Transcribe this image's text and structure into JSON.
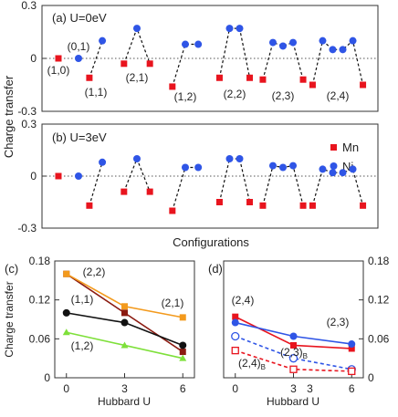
{
  "colors": {
    "mn": "#e8141e",
    "ni": "#2f55e6",
    "dash": "#111111",
    "frame": "#333333",
    "c_22": "#8b1a10",
    "c_21": "#f39a1d",
    "c_11": "#111111",
    "c_12": "#7ee03a",
    "d_24": "#e8141e",
    "d_23": "#2f55e6"
  },
  "chart_data": [
    {
      "id": "a",
      "type": "scatter",
      "panel_label": "(a) U=0eV",
      "ylabel": "Charge transfer",
      "ylim": [
        -0.3,
        0.3
      ],
      "yticks": [
        -0.3,
        0,
        0.3
      ],
      "ytick_labels": [
        "-0.3",
        "0",
        "0.3"
      ],
      "zero_line": true,
      "groups": [
        {
          "label": "(1,0)",
          "points": [
            {
              "s": "Mn",
              "y": 0.0
            }
          ]
        },
        {
          "label": "(0,1)",
          "points": [
            {
              "s": "Ni",
              "y": 0.0
            }
          ]
        },
        {
          "label": "(1,1)",
          "points": [
            {
              "s": "Mn",
              "y": -0.11
            },
            {
              "s": "Ni",
              "y": 0.1
            }
          ]
        },
        {
          "label": "(2,1)",
          "points": [
            {
              "s": "Mn",
              "y": -0.03
            },
            {
              "s": "Ni",
              "y": 0.17
            },
            {
              "s": "Mn",
              "y": -0.03
            }
          ]
        },
        {
          "label": "(1,2)",
          "points": [
            {
              "s": "Mn",
              "y": -0.16
            },
            {
              "s": "Ni",
              "y": 0.08
            },
            {
              "s": "Ni",
              "y": 0.08
            }
          ]
        },
        {
          "label": "(2,2)",
          "points": [
            {
              "s": "Mn",
              "y": -0.11
            },
            {
              "s": "Ni",
              "y": 0.17
            },
            {
              "s": "Ni",
              "y": 0.17
            },
            {
              "s": "Mn",
              "y": -0.11
            }
          ]
        },
        {
          "label": "(2,3)",
          "points": [
            {
              "s": "Mn",
              "y": -0.12
            },
            {
              "s": "Ni",
              "y": 0.09
            },
            {
              "s": "Ni",
              "y": 0.07
            },
            {
              "s": "Ni",
              "y": 0.09
            },
            {
              "s": "Mn",
              "y": -0.12
            }
          ]
        },
        {
          "label": "(2,4)",
          "points": [
            {
              "s": "Mn",
              "y": -0.15
            },
            {
              "s": "Ni",
              "y": 0.1
            },
            {
              "s": "Ni",
              "y": 0.05
            },
            {
              "s": "Ni",
              "y": 0.05
            },
            {
              "s": "Ni",
              "y": 0.1
            },
            {
              "s": "Mn",
              "y": -0.15
            }
          ]
        }
      ]
    },
    {
      "id": "b",
      "type": "scatter",
      "panel_label": "(b) U=3eV",
      "xlabel": "Configurations",
      "ylim": [
        -0.3,
        0.3
      ],
      "yticks": [
        -0.3,
        0,
        0.3
      ],
      "ytick_labels": [
        "-0.3",
        "0",
        "0.3"
      ],
      "zero_line": true,
      "legend": [
        {
          "s": "Mn",
          "label": "Mn"
        },
        {
          "s": "Ni",
          "label": "Ni"
        }
      ],
      "legend_position": "top-right",
      "groups": [
        {
          "points": [
            {
              "s": "Mn",
              "y": 0.0
            }
          ]
        },
        {
          "points": [
            {
              "s": "Ni",
              "y": 0.0
            }
          ]
        },
        {
          "points": [
            {
              "s": "Mn",
              "y": -0.17
            },
            {
              "s": "Ni",
              "y": 0.08
            }
          ]
        },
        {
          "points": [
            {
              "s": "Mn",
              "y": -0.09
            },
            {
              "s": "Ni",
              "y": 0.1
            },
            {
              "s": "Mn",
              "y": -0.09
            }
          ]
        },
        {
          "points": [
            {
              "s": "Mn",
              "y": -0.2
            },
            {
              "s": "Ni",
              "y": 0.05
            },
            {
              "s": "Ni",
              "y": 0.05
            }
          ]
        },
        {
          "points": [
            {
              "s": "Mn",
              "y": -0.15
            },
            {
              "s": "Ni",
              "y": 0.1
            },
            {
              "s": "Ni",
              "y": 0.1
            },
            {
              "s": "Mn",
              "y": -0.15
            }
          ]
        },
        {
          "points": [
            {
              "s": "Mn",
              "y": -0.17
            },
            {
              "s": "Ni",
              "y": 0.06
            },
            {
              "s": "Ni",
              "y": 0.05
            },
            {
              "s": "Ni",
              "y": 0.06
            },
            {
              "s": "Mn",
              "y": -0.17
            }
          ]
        },
        {
          "points": [
            {
              "s": "Mn",
              "y": -0.17
            },
            {
              "s": "Ni",
              "y": 0.04
            },
            {
              "s": "Ni",
              "y": 0.02
            },
            {
              "s": "Ni",
              "y": 0.02
            },
            {
              "s": "Ni",
              "y": 0.04
            },
            {
              "s": "Mn",
              "y": -0.17
            }
          ]
        }
      ]
    },
    {
      "id": "c",
      "type": "line",
      "panel_label": "(c)",
      "xlabel": "Hubbard U",
      "ylabel": "Charge transfer",
      "x": [
        0,
        3,
        6
      ],
      "xtick_labels": [
        "0",
        "3",
        "6"
      ],
      "ylim": [
        0,
        0.18
      ],
      "yticks": [
        0,
        0.06,
        0.12,
        0.18
      ],
      "ytick_labels": [
        "0",
        "0.06",
        "0.12",
        "0.18"
      ],
      "series": [
        {
          "name": "(2,2)",
          "marker": "square",
          "color_key": "c_22",
          "values": [
            0.16,
            0.1,
            0.04
          ]
        },
        {
          "name": "(2,1)",
          "marker": "square",
          "color_key": "c_21",
          "values": [
            0.16,
            0.11,
            0.093
          ]
        },
        {
          "name": "(1,1)",
          "marker": "circle",
          "color_key": "c_11",
          "values": [
            0.1,
            0.085,
            0.05
          ]
        },
        {
          "name": "(1,2)",
          "marker": "triangle",
          "color_key": "c_12",
          "values": [
            0.07,
            0.05,
            0.03
          ]
        }
      ]
    },
    {
      "id": "d",
      "type": "line",
      "panel_label": "(d)",
      "xlabel": "Hubbard U",
      "x": [
        0,
        3,
        6
      ],
      "xtick_labels": [
        "0",
        "3",
        "6"
      ],
      "extra_tick_label": "3",
      "ylim": [
        0,
        0.18
      ],
      "yticks": [
        0,
        0.06,
        0.12,
        0.18
      ],
      "ytick_labels": [
        "0",
        "0.06",
        "0.12",
        "0.18"
      ],
      "series": [
        {
          "name": "(2,4)",
          "marker": "square",
          "color_key": "d_24",
          "filled": true,
          "dashed": false,
          "values": [
            0.094,
            0.05,
            0.045
          ]
        },
        {
          "name": "(2,3)",
          "marker": "circle",
          "color_key": "d_23",
          "filled": true,
          "dashed": false,
          "values": [
            0.085,
            0.064,
            0.052
          ]
        },
        {
          "name": "(2,3)",
          "sub": "B",
          "marker": "circle",
          "color_key": "d_23",
          "filled": false,
          "dashed": true,
          "values": [
            0.064,
            0.03,
            0.013
          ]
        },
        {
          "name": "(2,4)",
          "sub": "B",
          "marker": "square",
          "color_key": "d_24",
          "filled": false,
          "dashed": true,
          "values": [
            0.042,
            0.013,
            0.01
          ]
        }
      ]
    }
  ]
}
